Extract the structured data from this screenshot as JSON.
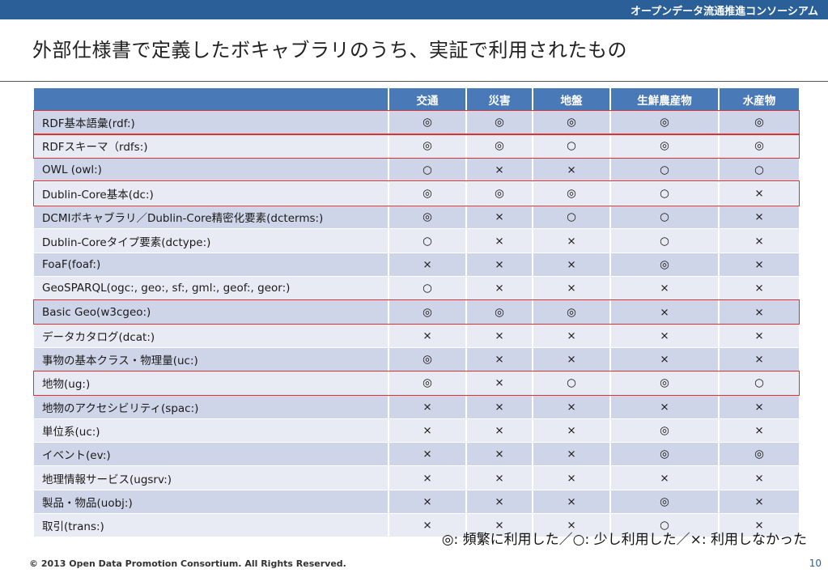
{
  "header": {
    "org_name": "オープンデータ流通推進コンソーシアム"
  },
  "slide": {
    "title": "外部仕様書で定義したボキャブラリのうち、実証で利用されたもの"
  },
  "table": {
    "columns": [
      "交通",
      "災害",
      "地盤",
      "生鮮農産物",
      "水産物"
    ],
    "rows": [
      {
        "name": "RDF基本語彙(rdf:)",
        "cells": [
          "◎",
          "◎",
          "◎",
          "◎",
          "◎"
        ],
        "highlighted": true
      },
      {
        "name": "RDFスキーマ（rdfs:)",
        "cells": [
          "◎",
          "◎",
          "○",
          "◎",
          "◎"
        ],
        "highlighted": true
      },
      {
        "name": "OWL (owl:)",
        "cells": [
          "○",
          "×",
          "×",
          "○",
          "○"
        ],
        "highlighted": false
      },
      {
        "name": "Dublin-Core基本(dc:)",
        "cells": [
          "◎",
          "◎",
          "◎",
          "○",
          "×"
        ],
        "highlighted": true
      },
      {
        "name": "DCMIボキャブラリ／Dublin-Core精密化要素(dcterms:)",
        "cells": [
          "◎",
          "×",
          "○",
          "○",
          "×"
        ],
        "highlighted": false
      },
      {
        "name": "Dublin-Coreタイプ要素(dctype:)",
        "cells": [
          "○",
          "×",
          "×",
          "○",
          "×"
        ],
        "highlighted": false
      },
      {
        "name": "FoaF(foaf:)",
        "cells": [
          "×",
          "×",
          "×",
          "◎",
          "×"
        ],
        "highlighted": false
      },
      {
        "name": "GeoSPARQL(ogc:, geo:, sf:, gml:, geof:, geor:)",
        "cells": [
          "○",
          "×",
          "×",
          "×",
          "×"
        ],
        "highlighted": false
      },
      {
        "name": "Basic Geo(w3cgeo:)",
        "cells": [
          "◎",
          "◎",
          "◎",
          "×",
          "×"
        ],
        "highlighted": true
      },
      {
        "name": "データカタログ(dcat:)",
        "cells": [
          "×",
          "×",
          "×",
          "×",
          "×"
        ],
        "highlighted": false
      },
      {
        "name": "事物の基本クラス・物理量(uc:)",
        "cells": [
          "◎",
          "×",
          "×",
          "×",
          "×"
        ],
        "highlighted": false
      },
      {
        "name": "地物(ug:)",
        "cells": [
          "◎",
          "×",
          "○",
          "◎",
          "○"
        ],
        "highlighted": true
      },
      {
        "name": "地物のアクセシビリティ(spac:)",
        "cells": [
          "×",
          "×",
          "×",
          "×",
          "×"
        ],
        "highlighted": false
      },
      {
        "name": "単位系(uc:)",
        "cells": [
          "×",
          "×",
          "×",
          "◎",
          "×"
        ],
        "highlighted": false
      },
      {
        "name": "イベント(ev:)",
        "cells": [
          "×",
          "×",
          "×",
          "◎",
          "◎"
        ],
        "highlighted": false
      },
      {
        "name": "地理情報サービス(ugsrv:)",
        "cells": [
          "×",
          "×",
          "×",
          "×",
          "×"
        ],
        "highlighted": false
      },
      {
        "name": "製品・物品(uobj:)",
        "cells": [
          "×",
          "×",
          "×",
          "◎",
          "×"
        ],
        "highlighted": false
      },
      {
        "name": "取引(trans:)",
        "cells": [
          "×",
          "×",
          "×",
          "○",
          "×"
        ],
        "highlighted": false
      }
    ]
  },
  "legend": {
    "text": "◎: 頻繁に利用した／○: 少し利用した／×: 利用しなかった"
  },
  "footer": {
    "copyright": "© 2013 Open Data Promotion Consortium. All Rights Reserved.",
    "page_number": "10"
  },
  "colors": {
    "header_bar": "#2b5f98",
    "table_header": "#4a79b7",
    "row_odd": "#cfd5e8",
    "row_even": "#e8ebf4",
    "highlight_border": "#e03030"
  }
}
